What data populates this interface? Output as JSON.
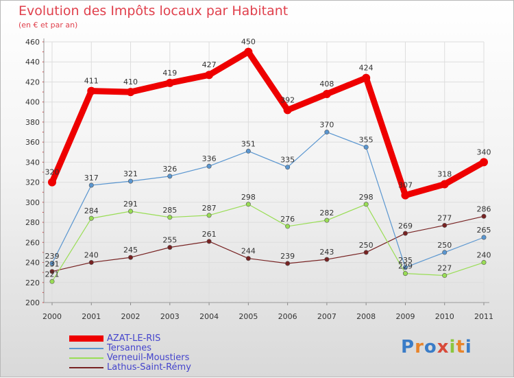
{
  "chart_data": {
    "type": "line",
    "title": "Evolution des Impôts locaux par Habitant",
    "subtitle": "(en € et par an)",
    "xlabel": "",
    "ylabel": "",
    "categories": [
      "2000",
      "2001",
      "2002",
      "2003",
      "2004",
      "2005",
      "2006",
      "2007",
      "2008",
      "2009",
      "2010",
      "2011"
    ],
    "ylim": [
      200,
      460
    ],
    "yticks": [
      200,
      220,
      240,
      260,
      280,
      300,
      320,
      340,
      360,
      380,
      400,
      420,
      440,
      460
    ],
    "grid": true,
    "legend_position": "bottom-left",
    "series": [
      {
        "name": "AZAT-LE-RIS",
        "color": "#ee0000",
        "values": [
          320,
          411,
          410,
          419,
          427,
          450,
          392,
          408,
          424,
          307,
          318,
          340
        ],
        "labels": [
          "320",
          "411",
          "410",
          "419",
          "427",
          "450",
          "392",
          "408",
          "424",
          "307",
          "318",
          "340"
        ]
      },
      {
        "name": "Tersannes",
        "color": "#5a96d0",
        "values": [
          239,
          317,
          321,
          326,
          336,
          351,
          335,
          370,
          355,
          235,
          250,
          265
        ],
        "labels": [
          "239",
          "317",
          "321",
          "326",
          "336",
          "351",
          "335",
          "370",
          "355",
          "235",
          "250",
          "265"
        ]
      },
      {
        "name": "Verneuil-Moustiers",
        "color": "#99dd55",
        "values": [
          221,
          284,
          291,
          285,
          287,
          298,
          276,
          282,
          298,
          229,
          227,
          240
        ],
        "labels": [
          "221",
          "284",
          "291",
          "285",
          "287",
          "298",
          "276",
          "282",
          "298",
          "229",
          "227",
          "240"
        ]
      },
      {
        "name": "Lathus-Saint-Rémy",
        "color": "#772222",
        "values": [
          231,
          240,
          245,
          255,
          261,
          244,
          239,
          243,
          250,
          269,
          277,
          286
        ],
        "labels": [
          "231",
          "240",
          "245",
          "255",
          "261",
          "244",
          "239",
          "243",
          "250",
          "269",
          "277",
          "286"
        ]
      }
    ]
  },
  "logo": {
    "text": "Proxiti",
    "letters": [
      "P",
      "r",
      "o",
      "x",
      "i",
      "t",
      "i"
    ],
    "colors": [
      "#3a7cc7",
      "#e8842a",
      "#3a7cc7",
      "#d84a3a",
      "#8cc63e",
      "#e8842a",
      "#3a7cc7"
    ]
  }
}
